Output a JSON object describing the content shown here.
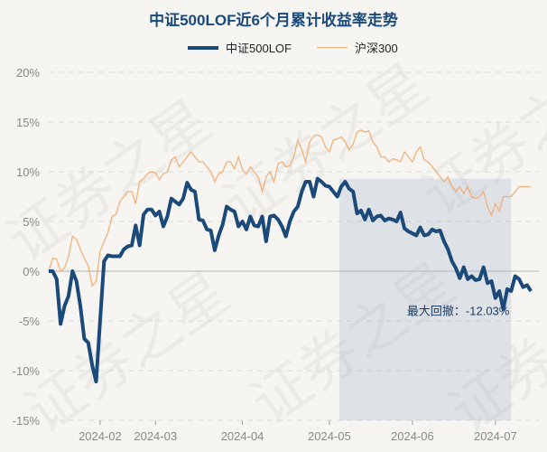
{
  "chart_data": {
    "type": "line",
    "title": "中证500LOF近6个月累计收益率走势",
    "colors": {
      "title": "#1a4a7a",
      "fund": "#1b4a7a",
      "index": "#f2b07a",
      "zero": "#c8c8c8",
      "grid": "#dadada",
      "drawdown": "rgba(175,190,205,0.35)"
    },
    "watermark": "证券之星",
    "yticks": [
      "20%",
      "15%",
      "10%",
      "5%",
      "0%",
      "-5%",
      "-10%",
      "-15%"
    ],
    "ylim": [
      -15,
      20
    ],
    "xlim": [
      0,
      124
    ],
    "xticks": [
      {
        "label": "2024-02",
        "x": 13
      },
      {
        "label": "2024-03",
        "x": 27
      },
      {
        "label": "2024-04",
        "x": 49
      },
      {
        "label": "2024-05",
        "x": 71
      },
      {
        "label": "2024-06",
        "x": 92
      },
      {
        "label": "2024-07",
        "x": 113
      }
    ],
    "max_drawdown": {
      "label": "最大回撤：-12.03%",
      "start_x": 73.5,
      "end_x": 117
    },
    "series": [
      {
        "name": "中证500LOF",
        "values": [
          0,
          0,
          -0.8,
          -5.3,
          -3.5,
          -2.5,
          0,
          -1.0,
          -3.5,
          -6.8,
          -7.2,
          -9.5,
          -11.1,
          -5.0,
          1.0,
          1.6,
          1.5,
          1.5,
          1.5,
          2.2,
          2.5,
          2.6,
          4.6,
          2.6,
          5.7,
          6.2,
          6.2,
          5.6,
          6.0,
          4.5,
          5.5,
          7.3,
          7.0,
          6.7,
          7.3,
          8.9,
          8.2,
          8.0,
          5.2,
          5.1,
          4.2,
          4.1,
          2.1,
          3.6,
          4.7,
          6.5,
          6.2,
          6.0,
          4.5,
          5.0,
          4.2,
          5.5,
          4.6,
          4.5,
          5.5,
          3.0,
          5.5,
          5.6,
          5.2,
          4.5,
          3.5,
          5.0,
          6.0,
          6.5,
          8.0,
          9.0,
          9.0,
          7.5,
          9.3,
          9.0,
          8.6,
          8.5,
          8.0,
          7.5,
          8.5,
          9.0,
          8.3,
          8.0,
          5.8,
          6.1,
          5.2,
          6.2,
          5.1,
          5.5,
          5.6,
          5.1,
          5.3,
          5.2,
          5.0,
          5.9,
          4.3,
          4.0,
          3.8,
          3.6,
          4.4,
          3.6,
          3.7,
          4.2,
          4.0,
          4.1,
          3.0,
          2.2,
          1.0,
          0.3,
          -0.7,
          0.4,
          -0.8,
          -0.5,
          -0.9,
          -0.8,
          0.4,
          -1.2,
          -1.0,
          -2.7,
          -2.0,
          -3.8,
          -1.8,
          -2.0,
          -0.5,
          -0.8,
          -1.6,
          -1.4,
          -2.0
        ],
        "style": "thick"
      },
      {
        "name": "沪深300",
        "values": [
          0,
          1.3,
          1.2,
          0.0,
          0.3,
          1.5,
          3.5,
          3.2,
          2.2,
          1.3,
          0.5,
          -1.5,
          -1.0,
          2.0,
          3.0,
          3.9,
          5.5,
          5.7,
          7.0,
          7.5,
          8.0,
          8.0,
          6.8,
          9.0,
          9.3,
          9.8,
          10.0,
          9.9,
          9.2,
          9.8,
          10.0,
          11.2,
          11.5,
          10.5,
          11.0,
          11.5,
          12.0,
          11.5,
          11.0,
          11.0,
          10.5,
          10.0,
          9.0,
          9.8,
          10.0,
          11.0,
          11.0,
          10.3,
          11.5,
          10.2,
          9.8,
          10.5,
          10.0,
          9.5,
          8.0,
          9.5,
          10.0,
          9.0,
          10.8,
          11.0,
          10.5,
          10.6,
          11.5,
          13.2,
          12.2,
          11.0,
          13.0,
          13.6,
          13.7,
          13.5,
          12.5,
          12.0,
          13.2,
          13.3,
          13.5,
          13.0,
          12.2,
          12.8,
          14.0,
          14.2,
          14.0,
          14.1,
          13.0,
          12.5,
          11.5,
          11.5,
          11.0,
          11.3,
          11.2,
          11.0,
          12.0,
          11.5,
          11.0,
          12.0,
          12.5,
          11.2,
          11.0,
          10.5,
          10.0,
          9.5,
          9.0,
          9.5,
          8.5,
          8.0,
          8.5,
          7.8,
          8.5,
          7.5,
          7.3,
          7.5,
          8.0,
          6.5,
          5.6,
          6.8,
          6.0,
          7.5,
          7.5,
          7.5,
          8.0,
          8.5,
          8.5,
          8.5,
          8.5
        ],
        "style": "thin"
      }
    ]
  }
}
